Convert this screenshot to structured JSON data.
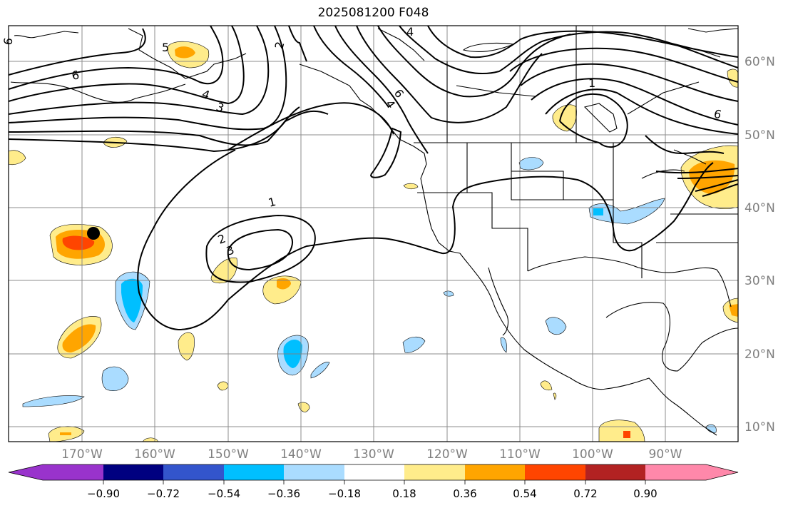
{
  "title": "2025081200 F048",
  "lon_labels": [
    "170°W",
    "160°W",
    "150°W",
    "140°W",
    "130°W",
    "120°W",
    "110°W",
    "100°W",
    "90°W"
  ],
  "lat_labels": [
    "60°N",
    "50°N",
    "40°N",
    "30°N",
    "20°N",
    "10°N"
  ],
  "colorbar": {
    "tick_labels": [
      "−0.90",
      "−0.72",
      "−0.54",
      "−0.36",
      "−0.18",
      "0.18",
      "0.36",
      "0.54",
      "0.72",
      "0.90"
    ],
    "colors": [
      "#9933cc",
      "#000080",
      "#3355cc",
      "#00bfff",
      "#aadcff",
      "#ffffff",
      "#ffec8b",
      "#ffa500",
      "#ff4500",
      "#b22222",
      "#ff88aa"
    ]
  },
  "contour_labels": [
    "6",
    "5",
    "4",
    "3",
    "2",
    "6",
    "4",
    "6",
    "4",
    "1",
    "1",
    "2",
    "3",
    "6"
  ],
  "marker": {
    "color": "#000000"
  }
}
